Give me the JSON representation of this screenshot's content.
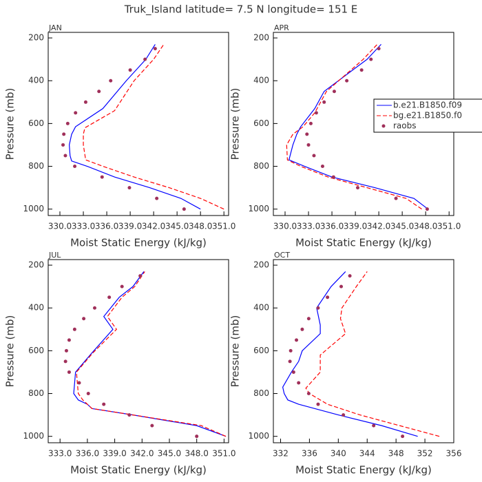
{
  "title": "Truk_Island  latitude= 7.5 N longitude= 151 E",
  "chart_data": [
    {
      "type": "line",
      "title": "JAN",
      "xlabel": "Moist Static Energy (kJ/kg)",
      "ylabel": "Pressure (mb)",
      "xlim": [
        328.5,
        351.6
      ],
      "ylim": [
        1030,
        174
      ],
      "xticks": [
        {
          "value": 330,
          "label": "330.0"
        },
        {
          "value": 333,
          "label": "333.0"
        },
        {
          "value": 336,
          "label": "336.0"
        },
        {
          "value": 339,
          "label": "339.0"
        },
        {
          "value": 342,
          "label": "342.0"
        },
        {
          "value": 345,
          "label": "345.0"
        },
        {
          "value": 348,
          "label": "348.0"
        },
        {
          "value": 351,
          "label": "351.0"
        }
      ],
      "yticks": [
        200,
        400,
        600,
        800,
        1000
      ],
      "series": [
        {
          "name": "b.e21.B1850.f09",
          "color": "#0000ff",
          "style": "solid",
          "x": [
            348.0,
            345.5,
            341.5,
            337,
            333.5,
            331.5,
            331.3,
            331.2,
            331.5,
            332.0,
            335.5,
            338.5,
            341,
            342.2
          ],
          "values": [
            1000,
            950,
            900,
            850,
            800,
            775,
            750,
            700,
            650,
            615,
            530,
            400,
            300,
            230
          ]
        },
        {
          "name": "bg.e21.B1850.f0",
          "color": "#ff0000",
          "style": "dashed",
          "x": [
            351.0,
            348,
            344,
            339.5,
            335.5,
            333.3,
            333,
            333,
            333.2,
            337,
            339.5,
            342,
            343.3
          ],
          "values": [
            1000,
            950,
            900,
            850,
            800,
            770,
            700,
            650,
            620,
            540,
            400,
            300,
            230
          ]
        },
        {
          "name": "raobs",
          "color": "#a0305a",
          "style": "markers",
          "x": [
            345.9,
            342.4,
            338.9,
            335.4,
            331.9,
            330.7,
            330.4,
            330.5,
            331.0,
            332.0,
            333.3,
            335.0,
            336.5,
            339.0,
            340.9,
            342.2
          ],
          "values": [
            1000,
            950,
            900,
            850,
            800,
            750,
            700,
            650,
            600,
            550,
            500,
            450,
            400,
            350,
            300,
            250
          ]
        }
      ]
    },
    {
      "type": "line",
      "title": "APR",
      "xlabel": "Moist Static Energy (kJ/kg)",
      "ylabel": "Pressure (mb)",
      "xlim": [
        328.5,
        351.6
      ],
      "ylim": [
        1030,
        174
      ],
      "legend": "center right",
      "xticks": [
        {
          "value": 330,
          "label": "330.0"
        },
        {
          "value": 333,
          "label": "333.0"
        },
        {
          "value": 336,
          "label": "336.0"
        },
        {
          "value": 339,
          "label": "339.0"
        },
        {
          "value": 342,
          "label": "342.0"
        },
        {
          "value": 345,
          "label": "345.0"
        },
        {
          "value": 348,
          "label": "348.0"
        },
        {
          "value": 351,
          "label": "351.0"
        }
      ],
      "yticks": [
        200,
        400,
        600,
        800,
        1000
      ],
      "series": [
        {
          "name": "b.e21.B1850.f09",
          "color": "#0000ff",
          "style": "solid",
          "x": [
            348.3,
            346.5,
            341.5,
            336,
            332.5,
            330.5,
            331,
            331.5,
            332,
            333.8,
            335,
            340.5,
            342.3
          ],
          "values": [
            1000,
            950,
            900,
            850,
            800,
            770,
            700,
            650,
            615,
            530,
            450,
            300,
            230
          ]
        },
        {
          "name": "bg.e21.B1850.f0",
          "color": "#ff0000",
          "style": "dashed",
          "x": [
            347.5,
            345.5,
            340.5,
            335.5,
            332,
            330.3,
            330.2,
            331,
            332.3,
            333.8,
            335.3,
            340,
            341.8
          ],
          "values": [
            1000,
            950,
            900,
            850,
            800,
            770,
            700,
            650,
            615,
            550,
            450,
            300,
            230
          ]
        },
        {
          "name": "raobs",
          "color": "#a0305a",
          "style": "markers",
          "x": [
            348.2,
            344.2,
            339.3,
            336.2,
            334.8,
            333.7,
            333.0,
            332.8,
            333.3,
            334.0,
            335.0,
            336.3,
            337.9,
            339.8,
            341.0,
            342.0
          ],
          "values": [
            1000,
            950,
            900,
            850,
            800,
            750,
            700,
            650,
            600,
            550,
            500,
            450,
            400,
            350,
            300,
            250
          ]
        }
      ]
    },
    {
      "type": "line",
      "title": "JUL",
      "xlabel": "Moist Static Energy (kJ/kg)",
      "ylabel": "Pressure (mb)",
      "xlim": [
        331.7,
        351.5
      ],
      "ylim": [
        1030,
        174
      ],
      "xticks": [
        {
          "value": 333,
          "label": "333.0"
        },
        {
          "value": 336,
          "label": "336.0"
        },
        {
          "value": 339,
          "label": "339.0"
        },
        {
          "value": 342,
          "label": "342.0"
        },
        {
          "value": 345,
          "label": "345.0"
        },
        {
          "value": 348,
          "label": "348.0"
        },
        {
          "value": 351,
          "label": "351.0"
        }
      ],
      "yticks": [
        200,
        400,
        600,
        800,
        1000
      ],
      "series": [
        {
          "name": "b.e21.B1850.f09",
          "color": "#0000ff",
          "style": "solid",
          "x": [
            351.2,
            348,
            341,
            336.5,
            336,
            335,
            334.5,
            334.7,
            336.5,
            338.8,
            337.8,
            339.5,
            341,
            342.2
          ],
          "values": [
            1000,
            950,
            900,
            870,
            850,
            830,
            800,
            700,
            610,
            500,
            440,
            350,
            300,
            230
          ]
        },
        {
          "name": "bg.e21.B1850.f0",
          "color": "#ff0000",
          "style": "dashed",
          "x": [
            351.2,
            348.5,
            341,
            336.5,
            335.5,
            335,
            334.8,
            336.6,
            339.2,
            338.2,
            339.8,
            341.2,
            342.3
          ],
          "values": [
            1000,
            950,
            900,
            870,
            830,
            800,
            700,
            610,
            500,
            440,
            350,
            300,
            230
          ]
        },
        {
          "name": "raobs",
          "color": "#a0305a",
          "style": "markers",
          "x": [
            348.0,
            343.1,
            340.6,
            337.8,
            336.1,
            335.1,
            334.0,
            333.6,
            333.7,
            334.0,
            334.6,
            335.6,
            336.8,
            338.4,
            339.8,
            341.8
          ],
          "values": [
            1000,
            950,
            900,
            850,
            800,
            750,
            700,
            650,
            600,
            550,
            500,
            450,
            400,
            350,
            300,
            250
          ]
        }
      ]
    },
    {
      "type": "line",
      "title": "OCT",
      "xlabel": "Moist Static Energy (kJ/kg)",
      "ylabel": "Pressure (mb)",
      "xlim": [
        331,
        356
      ],
      "ylim": [
        1030,
        174
      ],
      "xticks": [
        332,
        336,
        340,
        344,
        348,
        352,
        356
      ],
      "yticks": [
        200,
        400,
        600,
        800,
        1000
      ],
      "series": [
        {
          "name": "b.e21.B1850.f09",
          "color": "#0000ff",
          "style": "solid",
          "x": [
            351,
            346,
            340,
            334.5,
            333,
            332.5,
            332.3,
            333.5,
            334.5,
            335,
            337.5,
            337.5,
            337,
            339,
            341
          ],
          "values": [
            1000,
            950,
            900,
            850,
            830,
            800,
            770,
            700,
            650,
            600,
            520,
            480,
            400,
            300,
            230
          ]
        },
        {
          "name": "bg.e21.B1850.f0",
          "color": "#ff0000",
          "style": "dashed",
          "x": [
            354,
            348.5,
            343,
            338.5,
            336,
            335.5,
            337.5,
            337.5,
            337.5,
            341,
            340.3,
            340.5,
            342.5,
            344
          ],
          "values": [
            1000,
            950,
            900,
            850,
            800,
            775,
            700,
            650,
            620,
            520,
            450,
            400,
            300,
            230
          ]
        },
        {
          "name": "raobs",
          "color": "#a0305a",
          "style": "markers",
          "x": [
            348.9,
            344.9,
            340.7,
            337.2,
            335.9,
            334.5,
            333.8,
            333.3,
            333.4,
            334.2,
            335.0,
            335.9,
            337.2,
            338.5,
            340.4,
            341.6
          ],
          "values": [
            1000,
            950,
            900,
            850,
            800,
            750,
            700,
            650,
            600,
            550,
            500,
            450,
            400,
            350,
            300,
            250
          ]
        }
      ]
    }
  ]
}
